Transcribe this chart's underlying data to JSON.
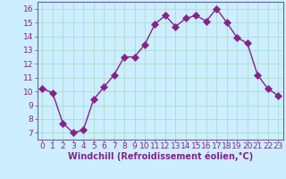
{
  "x": [
    0,
    1,
    2,
    3,
    4,
    5,
    6,
    7,
    8,
    9,
    10,
    11,
    12,
    13,
    14,
    15,
    16,
    17,
    18,
    19,
    20,
    21,
    22,
    23
  ],
  "y": [
    10.2,
    9.9,
    7.7,
    7.0,
    7.2,
    9.4,
    10.3,
    11.2,
    12.5,
    12.5,
    13.4,
    14.9,
    15.5,
    14.7,
    15.3,
    15.5,
    15.1,
    16.0,
    15.0,
    13.9,
    13.5,
    11.2,
    10.2,
    9.7
  ],
  "line_color": "#882288",
  "marker_color": "#882288",
  "bg_color": "#cceeff",
  "grid_color": "#aaddcc",
  "xlabel": "Windchill (Refroidissement éolien,°C)",
  "xlabel_color": "#882288",
  "tick_color": "#882288",
  "spine_color": "#666699",
  "ylim": [
    6.5,
    16.5
  ],
  "yticks": [
    7,
    8,
    9,
    10,
    11,
    12,
    13,
    14,
    15,
    16
  ],
  "xticks": [
    0,
    1,
    2,
    3,
    4,
    5,
    6,
    7,
    8,
    9,
    10,
    11,
    12,
    13,
    14,
    15,
    16,
    17,
    18,
    19,
    20,
    21,
    22,
    23
  ],
  "line_width": 1.0,
  "marker_size": 4,
  "tick_fontsize": 6.5,
  "xlabel_fontsize": 7.0
}
